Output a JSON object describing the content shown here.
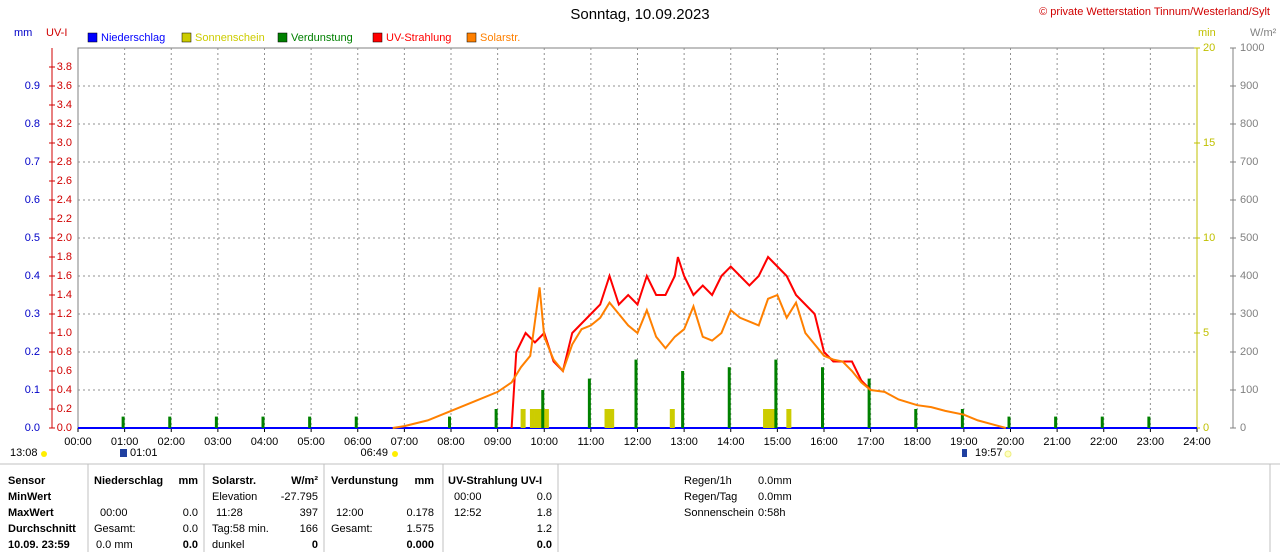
{
  "chart_data": {
    "type": "line",
    "title": "Sonntag, 10.09.2023",
    "credit": "© private Wetterstation Tinnum/Westerland/Sylt",
    "grid": true,
    "xlim": [
      "00:00",
      "24:00"
    ],
    "xticks": [
      "00:00",
      "01:00",
      "02:00",
      "03:00",
      "04:00",
      "05:00",
      "06:00",
      "07:00",
      "08:00",
      "09:00",
      "10:00",
      "11:00",
      "12:00",
      "13:00",
      "14:00",
      "15:00",
      "16:00",
      "17:00",
      "18:00",
      "19:00",
      "20:00",
      "21:00",
      "22:00",
      "23:00",
      "24:00"
    ],
    "axes": {
      "mm": {
        "label": "mm",
        "color": "#0000c8",
        "lim": [
          0,
          1
        ],
        "ticks": [
          {
            "value": 0,
            "label": "0.0"
          },
          0.1,
          0.2,
          0.3,
          0.4,
          0.5,
          0.6,
          0.7,
          0.8,
          0.9
        ]
      },
      "uv": {
        "label": "UV-I",
        "color": "#d00000",
        "lim": [
          0,
          4
        ],
        "ticks": [
          {
            "value": 0,
            "label": "0.0"
          },
          0.2,
          0.4,
          0.6,
          0.8,
          {
            "value": 1,
            "label": "1.0"
          },
          1.2,
          1.4,
          1.6,
          1.8,
          {
            "value": 2,
            "label": "2.0"
          },
          2.2,
          2.4,
          2.6,
          2.8,
          {
            "value": 3,
            "label": "3.0"
          },
          3.2,
          3.4,
          3.6,
          3.8
        ]
      },
      "min": {
        "label": "min",
        "color": "#c0c000",
        "lim": [
          0,
          20
        ],
        "ticks": [
          0,
          5,
          10,
          15,
          20
        ]
      },
      "wm2": {
        "label": "W/m²",
        "color": "#808080",
        "lim": [
          0,
          1000
        ],
        "ticks": [
          0,
          100,
          200,
          300,
          400,
          500,
          600,
          700,
          800,
          900,
          1000
        ]
      }
    },
    "series": [
      {
        "name": "Niederschlag",
        "type": "line",
        "axis": "mm",
        "color": "#0000ff",
        "x": [
          "00:00",
          "24:00"
        ],
        "values": [
          0,
          0
        ]
      },
      {
        "name": "Sonnenschein",
        "type": "bar",
        "axis": "min",
        "color": "#cccc00",
        "x": [
          "09:36",
          "09:48",
          "09:54",
          "10:00",
          "10:06",
          "11:24",
          "11:30",
          "12:48",
          "14:48",
          "14:54",
          "15:00",
          "15:18"
        ],
        "values": [
          1,
          1,
          1,
          1,
          1,
          1,
          1,
          1,
          1,
          1,
          1,
          1
        ]
      },
      {
        "name": "Verdunstung",
        "type": "bar",
        "axis": "mm",
        "color": "#008000",
        "x": [
          "01:00",
          "02:00",
          "03:00",
          "04:00",
          "05:00",
          "06:00",
          "08:00",
          "09:00",
          "10:00",
          "11:00",
          "12:00",
          "13:00",
          "14:00",
          "15:00",
          "16:00",
          "17:00",
          "18:00",
          "19:00",
          "20:00",
          "21:00",
          "22:00",
          "23:00"
        ],
        "values": [
          0.03,
          0.03,
          0.03,
          0.03,
          0.03,
          0.03,
          0.03,
          0.05,
          0.1,
          0.13,
          0.18,
          0.15,
          0.16,
          0.18,
          0.16,
          0.13,
          0.05,
          0.05,
          0.03,
          0.03,
          0.03,
          0.03
        ]
      },
      {
        "name": "UV-Strahlung",
        "type": "line",
        "axis": "uv",
        "color": "#ff0000",
        "x": [
          "09:18",
          "09:24",
          "09:36",
          "09:48",
          "10:00",
          "10:12",
          "10:24",
          "10:36",
          "10:48",
          "11:00",
          "11:12",
          "11:24",
          "11:36",
          "11:48",
          "12:00",
          "12:12",
          "12:24",
          "12:36",
          "12:48",
          "12:52",
          "13:00",
          "13:12",
          "13:24",
          "13:36",
          "13:48",
          "14:00",
          "14:12",
          "14:24",
          "14:36",
          "14:48",
          "15:00",
          "15:12",
          "15:24",
          "15:36",
          "15:48",
          "16:00",
          "16:12",
          "16:24",
          "16:36",
          "16:48",
          "17:00"
        ],
        "values": [
          0,
          0.8,
          1.0,
          0.9,
          1.0,
          0.7,
          0.6,
          1.0,
          1.1,
          1.2,
          1.3,
          1.6,
          1.3,
          1.4,
          1.3,
          1.6,
          1.4,
          1.4,
          1.6,
          1.8,
          1.6,
          1.4,
          1.5,
          1.4,
          1.6,
          1.7,
          1.6,
          1.5,
          1.6,
          1.8,
          1.7,
          1.6,
          1.4,
          1.3,
          1.2,
          0.8,
          0.7,
          0.7,
          0.7,
          0.5,
          0.4
        ]
      },
      {
        "name": "Solarstr.",
        "type": "line",
        "axis": "wm2",
        "color": "#ff8000",
        "x": [
          "06:45",
          "07:00",
          "07:30",
          "08:00",
          "08:30",
          "09:00",
          "09:18",
          "09:30",
          "09:42",
          "09:48",
          "09:54",
          "10:00",
          "10:12",
          "10:24",
          "10:36",
          "10:48",
          "11:00",
          "11:12",
          "11:24",
          "11:36",
          "11:48",
          "12:00",
          "12:12",
          "12:24",
          "12:36",
          "12:48",
          "13:00",
          "13:12",
          "13:24",
          "13:36",
          "13:48",
          "14:00",
          "14:12",
          "14:24",
          "14:36",
          "14:48",
          "15:00",
          "15:12",
          "15:24",
          "15:36",
          "15:48",
          "16:00",
          "16:12",
          "16:24",
          "16:36",
          "16:48",
          "17:00",
          "17:18",
          "17:36",
          "18:00",
          "18:18",
          "18:36",
          "19:00",
          "19:18",
          "19:36",
          "19:54"
        ],
        "values": [
          0,
          5,
          20,
          45,
          70,
          95,
          120,
          160,
          190,
          280,
          370,
          240,
          180,
          150,
          220,
          260,
          270,
          290,
          330,
          300,
          270,
          250,
          310,
          240,
          210,
          240,
          260,
          320,
          240,
          230,
          250,
          310,
          290,
          280,
          270,
          340,
          350,
          290,
          330,
          250,
          220,
          190,
          180,
          175,
          150,
          120,
          100,
          95,
          75,
          60,
          55,
          45,
          35,
          20,
          10,
          0
        ]
      }
    ]
  },
  "sun_marks": [
    "13:08",
    "01:01",
    "06:49",
    "19:57"
  ],
  "stats": {
    "sensor": [
      "Sensor",
      "MinWert",
      "MaxWert",
      "Durchschnitt",
      "10.09. 23:59"
    ],
    "niederschlag": {
      "title": "Niederschlag",
      "unit": "mm",
      "max_time": "00:00",
      "max": "0.0",
      "total_label": "Gesamt:",
      "total": "0.0",
      "day": "0.0 mm",
      "day_value": "0.0"
    },
    "solar": {
      "title": "Solarstr.",
      "unit": "W/m²",
      "min_label": "Elevation",
      "min": "-27.795",
      "max_time": "11:28",
      "max": "397",
      "avg_label": "Tag:58 min.",
      "avg": "166",
      "dark_label": "dunkel",
      "dark": "0"
    },
    "verdunstung": {
      "title": "Verdunstung",
      "unit": "mm",
      "max_time": "12:00",
      "max": "0.178",
      "total_label": "Gesamt:",
      "total": "1.575",
      "day": "0.000"
    },
    "uv": {
      "title": "UV-Strahlung UV-I",
      "min_time": "00:00",
      "min": "0.0",
      "max_time": "12:52",
      "max": "1.8",
      "avg": "1.2",
      "day": "0.0"
    },
    "summary": [
      {
        "label": "Regen/1h",
        "value": "0.0mm"
      },
      {
        "label": "Regen/Tag",
        "value": "0.0mm"
      },
      {
        "label": "Sonnenschein",
        "value": "0:58h"
      }
    ]
  }
}
